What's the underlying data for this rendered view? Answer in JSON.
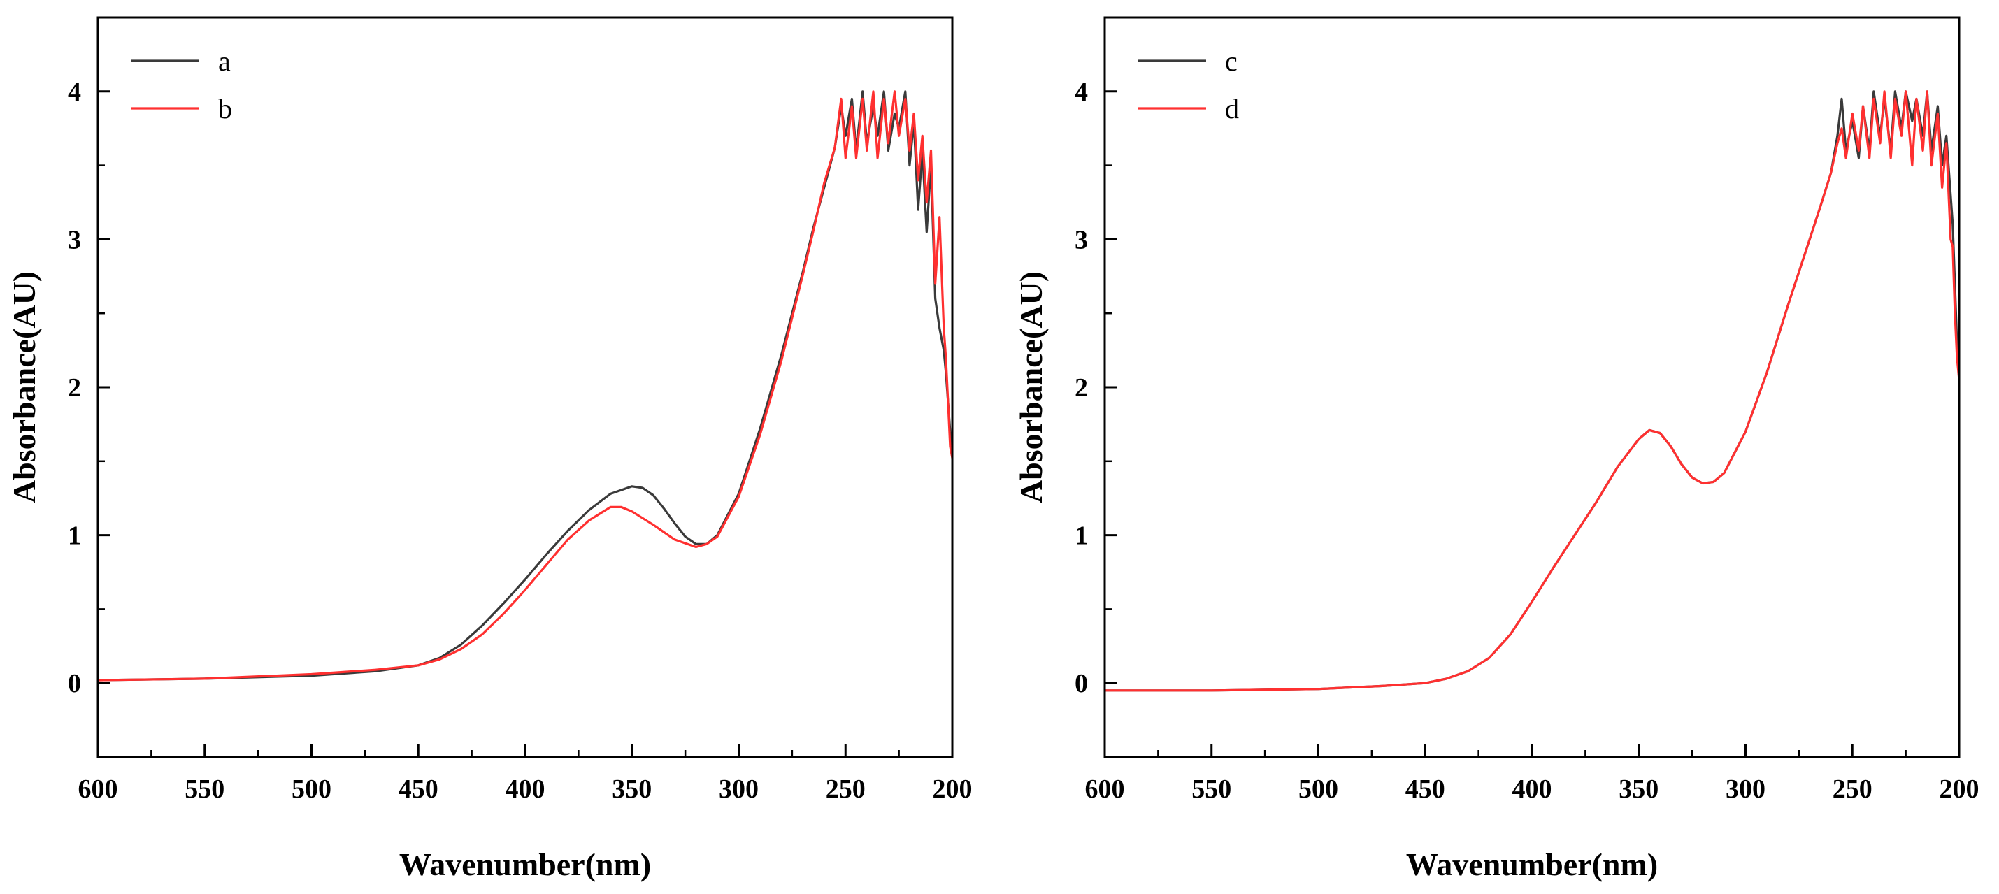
{
  "chart_data": [
    {
      "type": "line",
      "panel": "left",
      "title": "",
      "xlabel": "Wavenumber(nm)",
      "ylabel": "Absorbance(AU)",
      "xlim": [
        600,
        200
      ],
      "ylim": [
        -0.5,
        4.5
      ],
      "xticks": [
        600,
        550,
        500,
        450,
        400,
        350,
        300,
        250,
        200
      ],
      "yticks": [
        0,
        1,
        2,
        3,
        4
      ],
      "legend_position": "top-left",
      "series": [
        {
          "name": "a",
          "color": "#3a3a3a",
          "x": [
            600,
            550,
            500,
            470,
            450,
            440,
            430,
            420,
            410,
            400,
            390,
            380,
            370,
            360,
            350,
            345,
            340,
            335,
            330,
            325,
            320,
            315,
            310,
            300,
            290,
            280,
            270,
            265,
            260,
            255,
            252,
            250,
            247,
            245,
            242,
            240,
            237,
            235,
            232,
            230,
            227,
            225,
            222,
            220,
            218,
            216,
            214,
            212,
            210,
            208,
            206,
            204,
            203,
            202,
            201,
            200
          ],
          "y": [
            0.02,
            0.03,
            0.05,
            0.08,
            0.12,
            0.17,
            0.26,
            0.39,
            0.54,
            0.7,
            0.87,
            1.03,
            1.17,
            1.28,
            1.33,
            1.32,
            1.27,
            1.18,
            1.08,
            0.99,
            0.94,
            0.94,
            1.0,
            1.28,
            1.72,
            2.22,
            2.78,
            3.08,
            3.35,
            3.62,
            3.9,
            3.7,
            3.95,
            3.6,
            4.0,
            3.65,
            3.9,
            3.7,
            4.0,
            3.6,
            3.85,
            3.75,
            4.0,
            3.5,
            3.8,
            3.2,
            3.6,
            3.05,
            3.5,
            2.6,
            2.4,
            2.25,
            2.1,
            1.9,
            1.7,
            1.55
          ]
        },
        {
          "name": "b",
          "color": "#ff3030",
          "x": [
            600,
            550,
            500,
            470,
            450,
            440,
            430,
            420,
            410,
            400,
            390,
            380,
            370,
            360,
            355,
            350,
            340,
            330,
            320,
            315,
            310,
            300,
            290,
            280,
            270,
            265,
            260,
            255,
            252,
            250,
            247,
            245,
            242,
            240,
            237,
            235,
            232,
            230,
            227,
            225,
            222,
            220,
            218,
            216,
            214,
            212,
            210,
            208,
            206,
            204,
            203,
            202,
            201,
            200
          ],
          "y": [
            0.02,
            0.03,
            0.06,
            0.09,
            0.12,
            0.16,
            0.23,
            0.33,
            0.47,
            0.63,
            0.8,
            0.97,
            1.1,
            1.19,
            1.19,
            1.16,
            1.07,
            0.97,
            0.92,
            0.94,
            0.99,
            1.26,
            1.68,
            2.18,
            2.76,
            3.06,
            3.38,
            3.62,
            3.95,
            3.55,
            3.9,
            3.55,
            3.95,
            3.6,
            4.0,
            3.55,
            3.95,
            3.65,
            4.0,
            3.7,
            3.95,
            3.6,
            3.85,
            3.4,
            3.7,
            3.25,
            3.6,
            2.7,
            3.15,
            2.4,
            2.2,
            1.9,
            1.6,
            1.52
          ]
        }
      ]
    },
    {
      "type": "line",
      "panel": "right",
      "title": "",
      "xlabel": "Wavenumber(nm)",
      "ylabel": "Absorbance(AU)",
      "xlim": [
        600,
        200
      ],
      "ylim": [
        -0.5,
        4.5
      ],
      "xticks": [
        600,
        550,
        500,
        450,
        400,
        350,
        300,
        250,
        200
      ],
      "yticks": [
        0,
        1,
        2,
        3,
        4
      ],
      "legend_position": "top-left",
      "series": [
        {
          "name": "c",
          "color": "#3a3a3a",
          "x": [
            600,
            550,
            500,
            470,
            450,
            440,
            430,
            420,
            410,
            400,
            390,
            380,
            370,
            360,
            350,
            345,
            340,
            335,
            330,
            325,
            320,
            315,
            310,
            300,
            290,
            280,
            270,
            265,
            260,
            257,
            255,
            253,
            250,
            247,
            245,
            242,
            240,
            237,
            235,
            232,
            230,
            227,
            225,
            222,
            220,
            217,
            215,
            213,
            210,
            208,
            206,
            204,
            203,
            202,
            201,
            200
          ],
          "y": [
            -0.05,
            -0.05,
            -0.04,
            -0.02,
            0.0,
            0.03,
            0.08,
            0.17,
            0.33,
            0.55,
            0.78,
            1.0,
            1.22,
            1.46,
            1.65,
            1.71,
            1.69,
            1.6,
            1.48,
            1.39,
            1.35,
            1.36,
            1.42,
            1.7,
            2.1,
            2.56,
            3.0,
            3.22,
            3.45,
            3.7,
            3.95,
            3.6,
            3.8,
            3.55,
            3.9,
            3.6,
            4.0,
            3.7,
            3.95,
            3.6,
            4.0,
            3.75,
            4.0,
            3.8,
            3.95,
            3.7,
            4.0,
            3.6,
            3.9,
            3.5,
            3.7,
            3.3,
            3.1,
            2.7,
            2.3,
            2.05
          ]
        },
        {
          "name": "d",
          "color": "#ff3030",
          "x": [
            600,
            550,
            500,
            470,
            450,
            440,
            430,
            420,
            410,
            400,
            390,
            380,
            370,
            360,
            350,
            345,
            340,
            335,
            330,
            325,
            320,
            315,
            310,
            300,
            290,
            280,
            270,
            265,
            260,
            257,
            255,
            253,
            250,
            247,
            245,
            242,
            240,
            237,
            235,
            232,
            230,
            227,
            225,
            222,
            220,
            217,
            215,
            213,
            210,
            208,
            206,
            204,
            203,
            202,
            201,
            200
          ],
          "y": [
            -0.05,
            -0.05,
            -0.04,
            -0.02,
            0.0,
            0.03,
            0.08,
            0.17,
            0.33,
            0.55,
            0.78,
            1.0,
            1.22,
            1.46,
            1.65,
            1.71,
            1.69,
            1.6,
            1.48,
            1.39,
            1.35,
            1.36,
            1.42,
            1.7,
            2.1,
            2.56,
            3.0,
            3.22,
            3.45,
            3.65,
            3.75,
            3.55,
            3.85,
            3.6,
            3.9,
            3.55,
            3.95,
            3.65,
            4.0,
            3.55,
            3.95,
            3.7,
            4.0,
            3.5,
            3.95,
            3.6,
            4.0,
            3.5,
            3.85,
            3.35,
            3.65,
            3.0,
            2.95,
            2.5,
            2.2,
            2.05
          ]
        }
      ]
    }
  ]
}
